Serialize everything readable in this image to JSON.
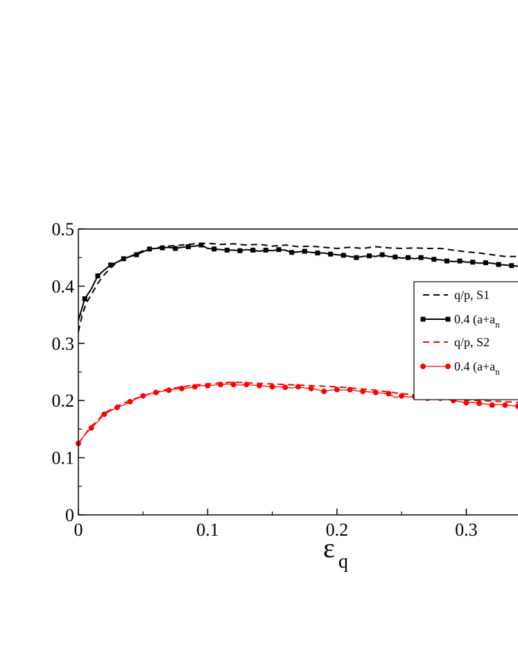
{
  "chart_data": {
    "type": "line",
    "title": "",
    "xlabel": "ε",
    "xlabel_sub": "q",
    "ylabel": "",
    "xlim": [
      0,
      0.34
    ],
    "ylim": [
      0,
      0.5
    ],
    "xticks": [
      0,
      0.1,
      0.2,
      0.3
    ],
    "xtick_labels": [
      "0",
      "0.1",
      "0.2",
      "0.3"
    ],
    "yticks": [
      0,
      0.1,
      0.2,
      0.3,
      0.4,
      0.5
    ],
    "ytick_labels": [
      "0",
      "0.1",
      "0.2",
      "0.3",
      "0.4",
      "0.5"
    ],
    "grid": false,
    "legend_position": "right",
    "colors": {
      "black": "#000000",
      "red": "#ff0000"
    },
    "series": [
      {
        "name": "q/p, S1",
        "color": "#000000",
        "style": "dashed",
        "marker": "none",
        "x": [
          0.0,
          0.003,
          0.006,
          0.01,
          0.015,
          0.02,
          0.025,
          0.03,
          0.04,
          0.05,
          0.06,
          0.07,
          0.08,
          0.09,
          0.1,
          0.11,
          0.12,
          0.13,
          0.14,
          0.15,
          0.16,
          0.17,
          0.18,
          0.19,
          0.2,
          0.21,
          0.22,
          0.23,
          0.24,
          0.25,
          0.26,
          0.27,
          0.28,
          0.29,
          0.3,
          0.31,
          0.32,
          0.33,
          0.34
        ],
        "y": [
          0.32,
          0.35,
          0.37,
          0.385,
          0.405,
          0.42,
          0.432,
          0.442,
          0.452,
          0.462,
          0.467,
          0.47,
          0.472,
          0.474,
          0.475,
          0.473,
          0.474,
          0.472,
          0.473,
          0.47,
          0.472,
          0.469,
          0.47,
          0.468,
          0.466,
          0.468,
          0.466,
          0.469,
          0.467,
          0.466,
          0.467,
          0.466,
          0.466,
          0.463,
          0.46,
          0.458,
          0.455,
          0.452,
          0.452
        ]
      },
      {
        "name": "0.4 (a+a",
        "name_sub": "n",
        "color": "#000000",
        "style": "solid",
        "marker": "square",
        "x": [
          0.0,
          0.005,
          0.01,
          0.015,
          0.02,
          0.025,
          0.03,
          0.035,
          0.04,
          0.045,
          0.05,
          0.055,
          0.06,
          0.065,
          0.07,
          0.075,
          0.08,
          0.085,
          0.09,
          0.095,
          0.1,
          0.105,
          0.11,
          0.115,
          0.12,
          0.125,
          0.13,
          0.135,
          0.14,
          0.145,
          0.15,
          0.155,
          0.16,
          0.165,
          0.17,
          0.175,
          0.18,
          0.185,
          0.19,
          0.195,
          0.2,
          0.205,
          0.21,
          0.215,
          0.22,
          0.225,
          0.23,
          0.235,
          0.24,
          0.245,
          0.25,
          0.255,
          0.26,
          0.265,
          0.27,
          0.275,
          0.28,
          0.285,
          0.29,
          0.295,
          0.3,
          0.305,
          0.31,
          0.315,
          0.32,
          0.325,
          0.33,
          0.335,
          0.34
        ],
        "y": [
          0.34,
          0.378,
          0.395,
          0.418,
          0.428,
          0.437,
          0.442,
          0.448,
          0.452,
          0.455,
          0.46,
          0.465,
          0.466,
          0.467,
          0.468,
          0.466,
          0.468,
          0.469,
          0.47,
          0.472,
          0.466,
          0.465,
          0.464,
          0.463,
          0.463,
          0.462,
          0.464,
          0.463,
          0.461,
          0.463,
          0.462,
          0.464,
          0.463,
          0.459,
          0.46,
          0.461,
          0.459,
          0.458,
          0.458,
          0.456,
          0.455,
          0.454,
          0.452,
          0.45,
          0.452,
          0.453,
          0.452,
          0.455,
          0.452,
          0.451,
          0.449,
          0.45,
          0.448,
          0.45,
          0.449,
          0.447,
          0.446,
          0.444,
          0.443,
          0.444,
          0.442,
          0.442,
          0.44,
          0.441,
          0.44,
          0.438,
          0.437,
          0.436,
          0.435
        ]
      },
      {
        "name": "q/p, S2",
        "color": "#ff0000",
        "style": "dashed",
        "marker": "none",
        "x": [
          0.0,
          0.005,
          0.01,
          0.015,
          0.02,
          0.03,
          0.04,
          0.05,
          0.06,
          0.07,
          0.08,
          0.09,
          0.1,
          0.11,
          0.12,
          0.13,
          0.14,
          0.15,
          0.16,
          0.17,
          0.18,
          0.19,
          0.2,
          0.21,
          0.22,
          0.23,
          0.24,
          0.25,
          0.26,
          0.27,
          0.28,
          0.29,
          0.3,
          0.31,
          0.32,
          0.33,
          0.34
        ],
        "y": [
          0.125,
          0.14,
          0.155,
          0.165,
          0.178,
          0.19,
          0.2,
          0.208,
          0.215,
          0.22,
          0.224,
          0.227,
          0.229,
          0.231,
          0.232,
          0.231,
          0.23,
          0.229,
          0.228,
          0.227,
          0.226,
          0.225,
          0.224,
          0.222,
          0.22,
          0.218,
          0.215,
          0.212,
          0.21,
          0.207,
          0.205,
          0.203,
          0.201,
          0.2,
          0.199,
          0.198,
          0.197
        ]
      },
      {
        "name": "0.4 (a+a",
        "name_sub": "n",
        "color": "#ff0000",
        "style": "solid",
        "marker": "circle",
        "x": [
          0.0,
          0.005,
          0.01,
          0.015,
          0.02,
          0.025,
          0.03,
          0.035,
          0.04,
          0.045,
          0.05,
          0.055,
          0.06,
          0.065,
          0.07,
          0.075,
          0.08,
          0.085,
          0.09,
          0.095,
          0.1,
          0.105,
          0.11,
          0.115,
          0.12,
          0.125,
          0.13,
          0.135,
          0.14,
          0.145,
          0.15,
          0.155,
          0.16,
          0.165,
          0.17,
          0.175,
          0.18,
          0.185,
          0.19,
          0.195,
          0.2,
          0.205,
          0.21,
          0.215,
          0.22,
          0.225,
          0.23,
          0.235,
          0.24,
          0.245,
          0.25,
          0.255,
          0.26,
          0.265,
          0.27,
          0.275,
          0.28,
          0.285,
          0.29,
          0.295,
          0.3,
          0.305,
          0.31,
          0.315,
          0.32,
          0.325,
          0.33,
          0.335,
          0.34
        ],
        "y": [
          0.125,
          0.14,
          0.152,
          0.163,
          0.176,
          0.182,
          0.188,
          0.192,
          0.198,
          0.203,
          0.208,
          0.212,
          0.214,
          0.216,
          0.218,
          0.22,
          0.221,
          0.222,
          0.224,
          0.226,
          0.226,
          0.227,
          0.228,
          0.229,
          0.228,
          0.227,
          0.228,
          0.227,
          0.226,
          0.225,
          0.224,
          0.224,
          0.223,
          0.222,
          0.224,
          0.222,
          0.221,
          0.219,
          0.216,
          0.218,
          0.219,
          0.218,
          0.219,
          0.217,
          0.216,
          0.215,
          0.214,
          0.213,
          0.212,
          0.205,
          0.208,
          0.206,
          0.207,
          0.205,
          0.204,
          0.203,
          0.204,
          0.202,
          0.2,
          0.198,
          0.196,
          0.197,
          0.195,
          0.194,
          0.192,
          0.193,
          0.192,
          0.191,
          0.19
        ]
      }
    ]
  }
}
